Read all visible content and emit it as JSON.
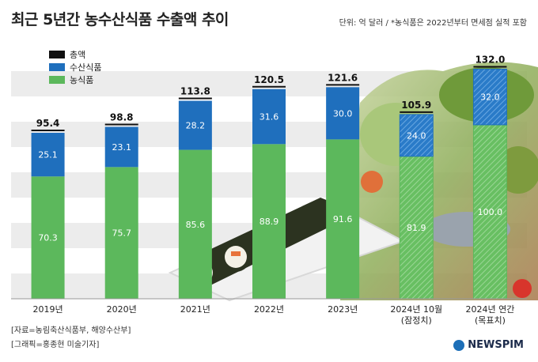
{
  "header": {
    "title": "최근 5년간 농수산식품 수출액 추이",
    "unit_note": "단위: 억 달러 / *농식품은 2022년부터 면세점 실적 포함"
  },
  "footer": {
    "source": "[자료=농림축산식품부, 해양수산부]",
    "credit": "[그래픽=홍종현 미술기자]",
    "logo": "NEWSPIM"
  },
  "colors": {
    "total": "#111111",
    "seafood": "#1f6fbd",
    "agri": "#5cb85c"
  },
  "chart_data": {
    "type": "bar",
    "stacked": true,
    "categories": [
      "2019년",
      "2020년",
      "2021년",
      "2022년",
      "2023년",
      "2024년 10월",
      "2024년 연간"
    ],
    "category_sublabels": [
      "",
      "",
      "",
      "",
      "",
      "(잠정치)",
      "(목표치)"
    ],
    "hatched_categories": [
      "2024년 10월",
      "2024년 연간"
    ],
    "series": [
      {
        "name": "농식품",
        "values": [
          70.3,
          75.7,
          85.6,
          88.9,
          91.6,
          81.9,
          100.0
        ],
        "value_labels": [
          "70.3",
          "75.7",
          "85.6",
          "88.9",
          "91.6",
          "81.9",
          "100.0"
        ]
      },
      {
        "name": "수산식품",
        "values": [
          25.1,
          23.1,
          28.2,
          31.6,
          30.0,
          24.0,
          32.0
        ],
        "value_labels": [
          "25.1",
          "23.1",
          "28.2",
          "31.6",
          "30.0",
          "24.0",
          "32.0"
        ]
      }
    ],
    "totals": {
      "name": "총액",
      "values": [
        95.4,
        98.8,
        113.8,
        120.5,
        121.6,
        105.9,
        132.0
      ],
      "labels": [
        "95.4",
        "98.8",
        "113.8",
        "120.5",
        "121.6",
        "105.9",
        "132.0"
      ]
    },
    "legend": [
      "총액",
      "수산식품",
      "농식품"
    ],
    "legend_position": "top-left",
    "ylim": [
      0,
      140
    ]
  }
}
